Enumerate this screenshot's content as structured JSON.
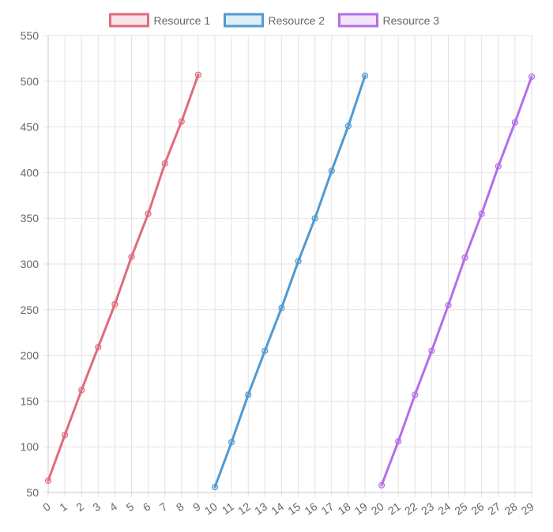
{
  "chart_data": {
    "type": "line",
    "x": [
      0,
      1,
      2,
      3,
      4,
      5,
      6,
      7,
      8,
      9,
      10,
      11,
      12,
      13,
      14,
      15,
      16,
      17,
      18,
      19,
      20,
      21,
      22,
      23,
      24,
      25,
      26,
      27,
      28,
      29
    ],
    "xlim": [
      0,
      29
    ],
    "ylim": [
      50,
      550
    ],
    "yticks": [
      50,
      100,
      150,
      200,
      250,
      300,
      350,
      400,
      450,
      500,
      550
    ],
    "grid": true,
    "legend_position": "top",
    "series": [
      {
        "name": "Resource 1",
        "color": "#e06b7d",
        "points": [
          [
            0,
            63
          ],
          [
            1,
            113
          ],
          [
            2,
            162
          ],
          [
            3,
            209
          ],
          [
            4,
            256
          ],
          [
            5,
            308
          ],
          [
            6,
            355
          ],
          [
            7,
            410
          ],
          [
            8,
            456
          ],
          [
            9,
            507
          ]
        ]
      },
      {
        "name": "Resource 2",
        "color": "#4e9ad4",
        "points": [
          [
            10,
            56
          ],
          [
            11,
            105
          ],
          [
            12,
            157
          ],
          [
            13,
            205
          ],
          [
            14,
            252
          ],
          [
            15,
            303
          ],
          [
            16,
            350
          ],
          [
            17,
            402
          ],
          [
            18,
            451
          ],
          [
            19,
            506
          ]
        ]
      },
      {
        "name": "Resource 3",
        "color": "#b56ee8",
        "points": [
          [
            20,
            58
          ],
          [
            21,
            106
          ],
          [
            22,
            157
          ],
          [
            23,
            205
          ],
          [
            24,
            255
          ],
          [
            25,
            307
          ],
          [
            26,
            355
          ],
          [
            27,
            407
          ],
          [
            28,
            455
          ],
          [
            29,
            505
          ]
        ]
      }
    ]
  }
}
